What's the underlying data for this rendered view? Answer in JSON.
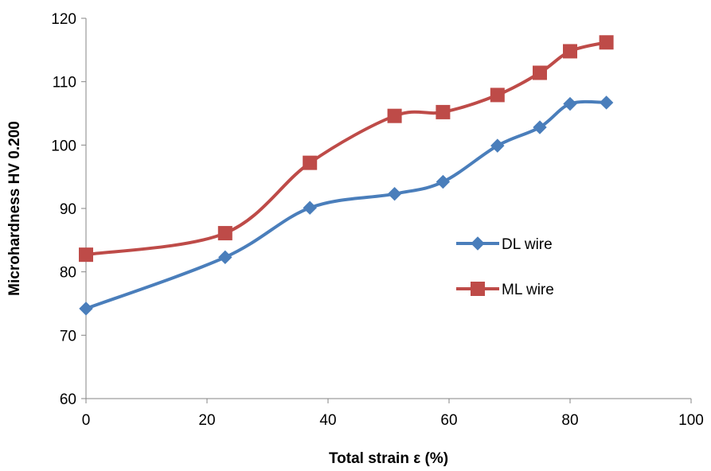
{
  "chart_data": {
    "type": "line",
    "xlabel": "Total strain ε (%)",
    "ylabel": "Microhardness HV 0.200",
    "xlim": [
      0,
      100
    ],
    "ylim": [
      60,
      120
    ],
    "xticks": [
      0,
      20,
      40,
      60,
      80,
      100
    ],
    "yticks": [
      60,
      70,
      80,
      90,
      100,
      110,
      120
    ],
    "grid": false,
    "legend_position": "right-middle",
    "series": [
      {
        "name": "DL wire",
        "color": "#4a7ebb",
        "marker": "diamond",
        "x": [
          0,
          23,
          37,
          51,
          59,
          68,
          75,
          80,
          86
        ],
        "y": [
          74.2,
          82.3,
          90.1,
          92.3,
          94.2,
          99.9,
          102.8,
          106.5,
          106.7
        ]
      },
      {
        "name": "ML wire",
        "color": "#be4b48",
        "marker": "square",
        "x": [
          0,
          23,
          37,
          51,
          59,
          68,
          75,
          80,
          86
        ],
        "y": [
          82.7,
          86.1,
          97.2,
          104.6,
          105.2,
          107.9,
          111.4,
          114.8,
          116.2
        ]
      }
    ]
  }
}
